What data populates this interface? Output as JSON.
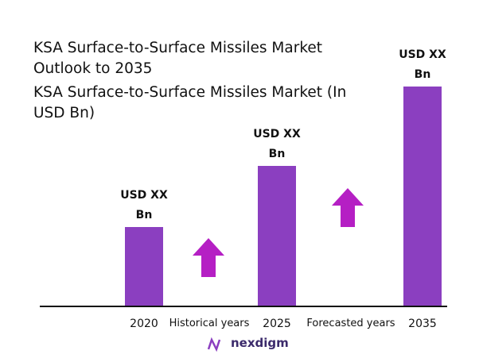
{
  "chart_data": {
    "type": "bar",
    "title": "KSA Surface-to-Surface Missiles Market Outlook to 2035",
    "subtitle": "KSA Surface-to-Surface Missiles Market (In USD Bn)",
    "categories": [
      "2020",
      "2025",
      "2035"
    ],
    "values": [
      99,
      176,
      276
    ],
    "value_labels": [
      "USD XX Bn",
      "USD XX Bn",
      "USD XX Bn"
    ],
    "color": "#8b3fc0",
    "annotations": [
      "Historical years",
      "Forecasted years"
    ],
    "logo": "nexdigm"
  }
}
